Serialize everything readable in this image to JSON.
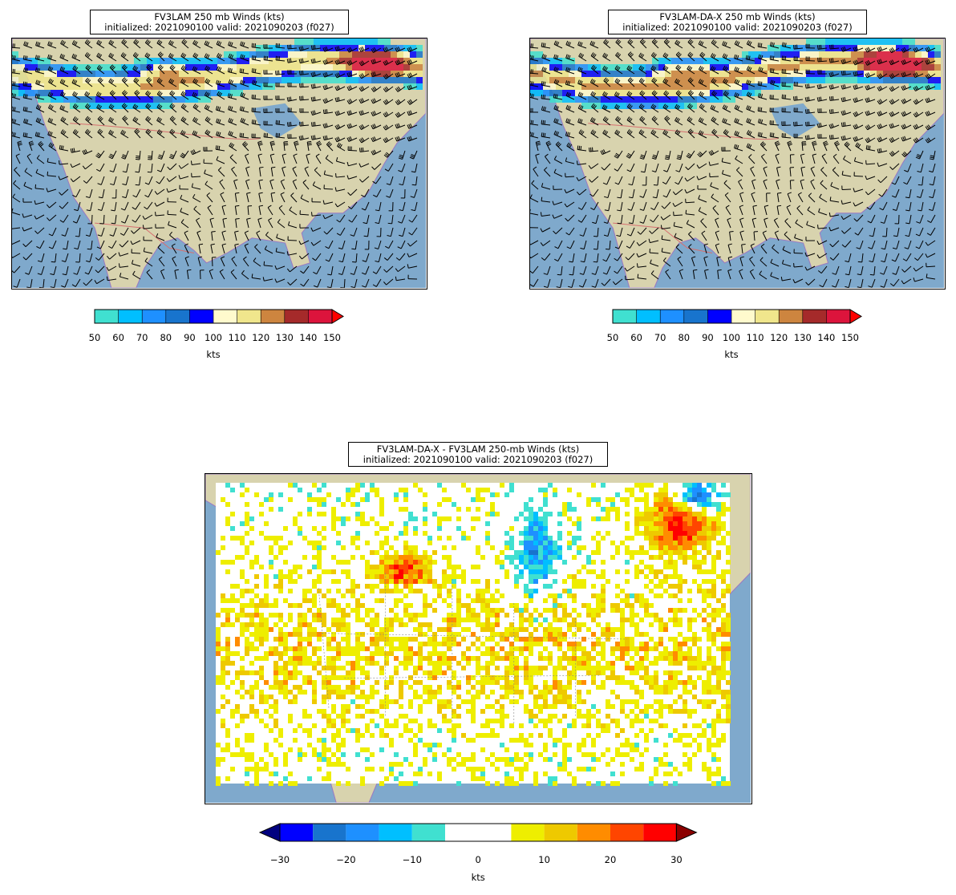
{
  "panels": {
    "top_left": {
      "title_line1": "FV3LAM 250 mb Winds (kts)",
      "title_line2": "initialized: 2021090100 valid: 2021090203 (f027)"
    },
    "top_right": {
      "title_line1": "FV3LAM-DA-X 250 mb Winds (kts)",
      "title_line2": "initialized: 2021090100 valid: 2021090203 (f027)"
    },
    "bottom": {
      "title_line1": "FV3LAM-DA-X - FV3LAM 250-mb Winds (kts)",
      "title_line2": "initialized: 2021090100 valid: 2021090203 (f027)"
    }
  },
  "colorbar_speed": {
    "ticks": [
      "50",
      "60",
      "70",
      "80",
      "90",
      "100",
      "110",
      "120",
      "130",
      "140",
      "150"
    ],
    "unit": "kts",
    "colors": [
      "#40e0d0",
      "#00bfff",
      "#1e90ff",
      "#1874cd",
      "#0000ff",
      "#fffacd",
      "#f0e68c",
      "#cd853f",
      "#a52a2a",
      "#dc143c"
    ],
    "extend_color": "#ff0000"
  },
  "colorbar_diff": {
    "ticks": [
      "−30",
      "−20",
      "−10",
      "0",
      "10",
      "20",
      "30"
    ],
    "unit": "kts",
    "colors": [
      "#0000ff",
      "#1874cd",
      "#1e90ff",
      "#00bfff",
      "#40e0d0",
      "#ffffff",
      "#ffffff",
      "#eeee00",
      "#eec900",
      "#ff8c00",
      "#ff4500",
      "#ff0000"
    ],
    "extend_low": "#000080",
    "extend_high": "#8b0000"
  },
  "map_colors": {
    "ocean": "#7fa9cc",
    "land": "#d8d3ae",
    "border": "#d67070",
    "coast": "#9a78c2"
  }
}
